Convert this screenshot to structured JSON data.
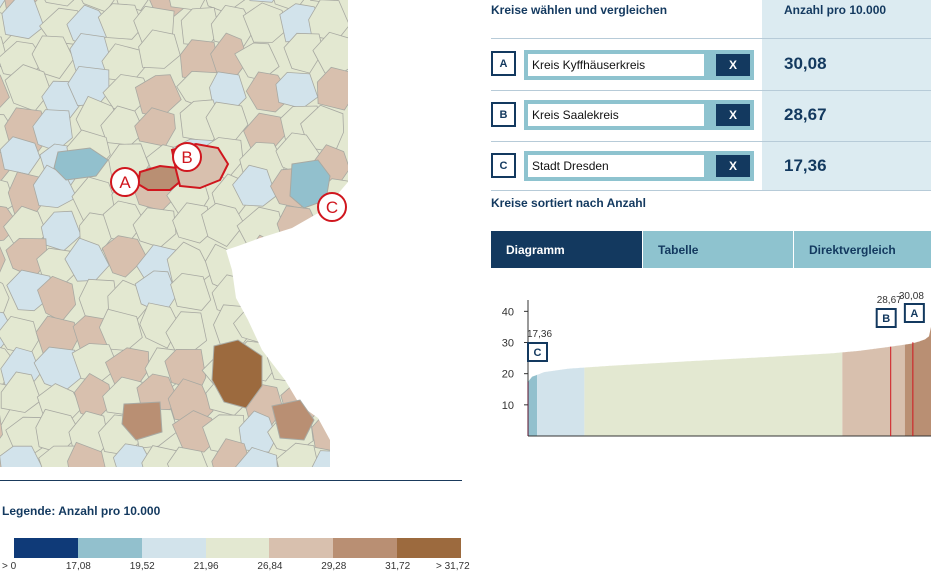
{
  "map": {
    "markers": [
      {
        "letter": "A",
        "color": "#d0161e"
      },
      {
        "letter": "B",
        "color": "#d0161e"
      },
      {
        "letter": "C",
        "color": "#d0161e"
      }
    ]
  },
  "legend": {
    "title": "Legende: Anzahl pro 10.000",
    "colors": [
      "#0f3a78",
      "#92c0cd",
      "#d2e3eb",
      "#e3e8d1",
      "#d8c0ae",
      "#b98f73",
      "#9c6a3e"
    ],
    "ticks": [
      "> 0",
      "17,08",
      "19,52",
      "21,96",
      "26,84",
      "29,28",
      "31,72",
      "> 31,72"
    ]
  },
  "panel": {
    "title": "Kreise wählen und vergleichen",
    "column_title": "Anzahl pro 10.000",
    "rows": [
      {
        "letter": "A",
        "name": "Kreis Kyffhäuserkreis",
        "clear_label": "X",
        "value": "30,08"
      },
      {
        "letter": "B",
        "name": "Kreis Saalekreis",
        "clear_label": "X",
        "value": "28,67"
      },
      {
        "letter": "C",
        "name": "Stadt Dresden",
        "clear_label": "X",
        "value": "17,36"
      }
    ],
    "sort_title": "Kreise sortiert nach Anzahl"
  },
  "tabs": [
    {
      "label": "Diagramm",
      "active": true
    },
    {
      "label": "Tabelle",
      "active": false
    },
    {
      "label": "Direktvergleich",
      "active": false
    }
  ],
  "chart_data": {
    "type": "area",
    "yticks": [
      10,
      20,
      30,
      40
    ],
    "ylim": [
      0,
      43
    ],
    "band_colors": [
      "#92c0cd",
      "#d2e3eb",
      "#e3e8d1",
      "#d8c0ae",
      "#b98f73"
    ],
    "highlights": [
      {
        "letter": "C",
        "value": "17,36",
        "rank_fraction": 0.0
      },
      {
        "letter": "B",
        "value": "28,67",
        "rank_fraction": 0.9
      },
      {
        "letter": "A",
        "value": "30,08",
        "rank_fraction": 0.955
      }
    ],
    "curve": [
      [
        0.0,
        17.36
      ],
      [
        0.01,
        19.0
      ],
      [
        0.04,
        20.5
      ],
      [
        0.1,
        21.6
      ],
      [
        0.2,
        22.5
      ],
      [
        0.4,
        24.0
      ],
      [
        0.6,
        25.4
      ],
      [
        0.75,
        26.5
      ],
      [
        0.82,
        27.3
      ],
      [
        0.9,
        28.67
      ],
      [
        0.95,
        29.6
      ],
      [
        0.97,
        30.3
      ],
      [
        0.985,
        31.0
      ],
      [
        0.995,
        32.0
      ],
      [
        1.0,
        35.0
      ]
    ]
  }
}
